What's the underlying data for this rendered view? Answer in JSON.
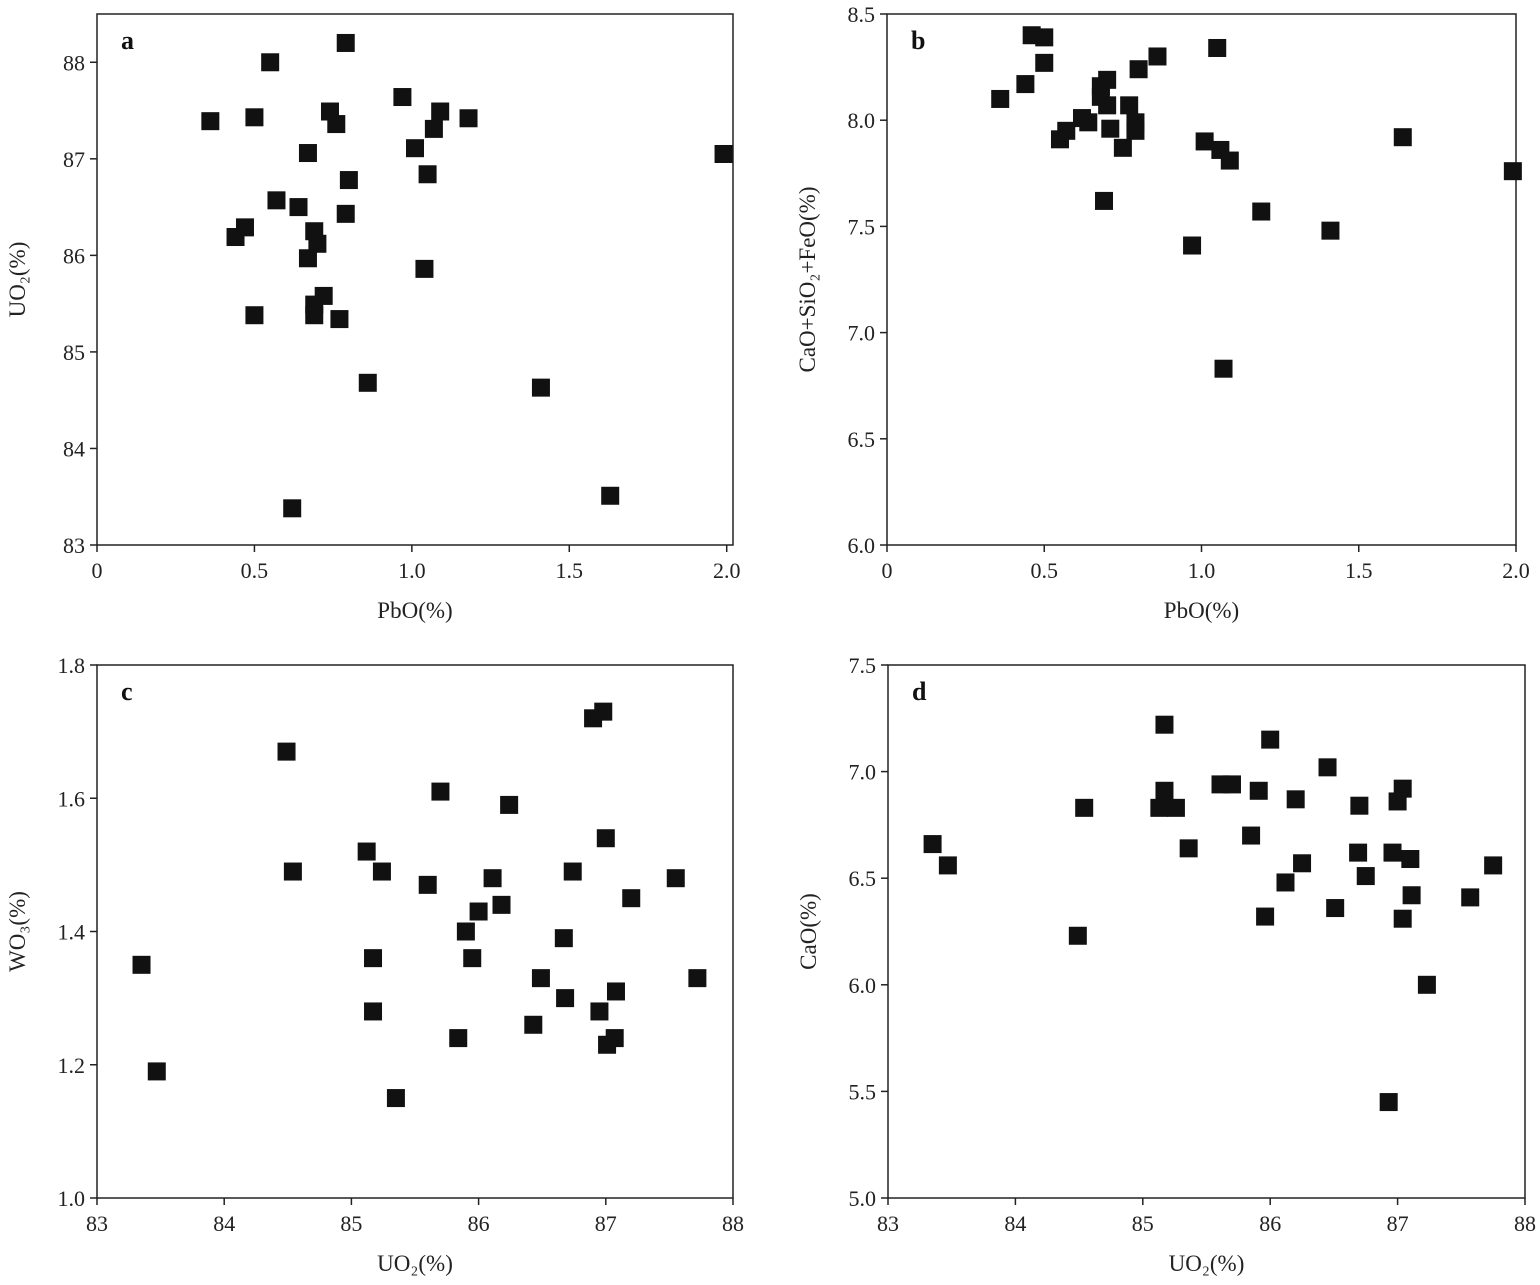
{
  "chart_data": [
    {
      "panel": "a",
      "type": "scatter",
      "xlabel": "PbO(%)",
      "ylabel": "UO₂(%)",
      "xlim": [
        0,
        2.02
      ],
      "ylim": [
        83,
        88.5
      ],
      "xticks": [
        0,
        0.5,
        1.0,
        1.5,
        2.0
      ],
      "xtick_labels": [
        "0",
        "0.5",
        "1.0",
        "1.5",
        "2.0"
      ],
      "yticks": [
        83,
        84,
        85,
        86,
        87,
        88
      ],
      "ytick_labels": [
        "83",
        "84",
        "85",
        "86",
        "87",
        "88"
      ],
      "points": [
        [
          0.36,
          87.39
        ],
        [
          0.55,
          88.0
        ],
        [
          0.5,
          87.43
        ],
        [
          0.79,
          88.2
        ],
        [
          0.74,
          87.49
        ],
        [
          0.76,
          87.36
        ],
        [
          0.67,
          87.06
        ],
        [
          0.97,
          87.64
        ],
        [
          1.09,
          87.49
        ],
        [
          1.18,
          87.42
        ],
        [
          1.07,
          87.31
        ],
        [
          1.01,
          87.11
        ],
        [
          1.05,
          86.84
        ],
        [
          0.8,
          86.78
        ],
        [
          1.99,
          87.05
        ],
        [
          0.57,
          86.57
        ],
        [
          0.64,
          86.5
        ],
        [
          0.79,
          86.43
        ],
        [
          0.44,
          86.19
        ],
        [
          0.47,
          86.29
        ],
        [
          0.69,
          86.25
        ],
        [
          0.7,
          86.12
        ],
        [
          0.67,
          85.97
        ],
        [
          1.04,
          85.86
        ],
        [
          0.72,
          85.58
        ],
        [
          0.69,
          85.49
        ],
        [
          0.69,
          85.38
        ],
        [
          0.5,
          85.38
        ],
        [
          0.77,
          85.34
        ],
        [
          0.86,
          84.68
        ],
        [
          1.41,
          84.63
        ],
        [
          1.63,
          83.51
        ],
        [
          0.62,
          83.38
        ]
      ]
    },
    {
      "panel": "b",
      "type": "scatter",
      "xlabel": "PbO(%)",
      "ylabel": "CaO+SiO₂+FeO(%)",
      "xlim": [
        0,
        2.0
      ],
      "ylim": [
        6.0,
        8.5
      ],
      "xticks": [
        0,
        0.5,
        1.0,
        1.5,
        2.0
      ],
      "xtick_labels": [
        "0",
        "0.5",
        "1.0",
        "1.5",
        "2.0"
      ],
      "yticks": [
        6.0,
        6.5,
        7.0,
        7.5,
        8.0,
        8.5
      ],
      "ytick_labels": [
        "6.0",
        "6.5",
        "7.0",
        "7.5",
        "8.0",
        "8.5"
      ],
      "points": [
        [
          0.46,
          8.4
        ],
        [
          0.5,
          8.39
        ],
        [
          0.5,
          8.27
        ],
        [
          0.44,
          8.17
        ],
        [
          0.36,
          8.1
        ],
        [
          0.7,
          8.19
        ],
        [
          0.68,
          8.16
        ],
        [
          0.68,
          8.11
        ],
        [
          0.7,
          8.07
        ],
        [
          0.8,
          8.24
        ],
        [
          0.86,
          8.3
        ],
        [
          1.05,
          8.34
        ],
        [
          0.77,
          8.07
        ],
        [
          0.79,
          7.99
        ],
        [
          0.79,
          7.95
        ],
        [
          0.71,
          7.96
        ],
        [
          0.75,
          7.87
        ],
        [
          0.64,
          7.99
        ],
        [
          0.62,
          8.01
        ],
        [
          0.57,
          7.95
        ],
        [
          0.55,
          7.91
        ],
        [
          1.01,
          7.9
        ],
        [
          1.06,
          7.86
        ],
        [
          1.09,
          7.81
        ],
        [
          1.64,
          7.92
        ],
        [
          1.99,
          7.76
        ],
        [
          0.69,
          7.62
        ],
        [
          1.19,
          7.57
        ],
        [
          1.41,
          7.48
        ],
        [
          0.97,
          7.41
        ],
        [
          1.07,
          6.83
        ]
      ]
    },
    {
      "panel": "c",
      "type": "scatter",
      "xlabel": "UO₂(%)",
      "ylabel": "WO₃(%)",
      "xlim": [
        83,
        88
      ],
      "ylim": [
        1.0,
        1.8
      ],
      "xticks": [
        83,
        84,
        85,
        86,
        87,
        88
      ],
      "xtick_labels": [
        "83",
        "84",
        "85",
        "86",
        "87",
        "88"
      ],
      "yticks": [
        1.0,
        1.2,
        1.4,
        1.6,
        1.8
      ],
      "ytick_labels": [
        "1.0",
        "1.2",
        "1.4",
        "1.6",
        "1.8"
      ],
      "points": [
        [
          83.35,
          1.35
        ],
        [
          83.47,
          1.19
        ],
        [
          84.49,
          1.67
        ],
        [
          84.54,
          1.49
        ],
        [
          85.12,
          1.52
        ],
        [
          85.24,
          1.49
        ],
        [
          85.17,
          1.36
        ],
        [
          85.17,
          1.28
        ],
        [
          85.35,
          1.15
        ],
        [
          85.7,
          1.61
        ],
        [
          85.6,
          1.47
        ],
        [
          85.9,
          1.4
        ],
        [
          86.0,
          1.43
        ],
        [
          85.95,
          1.36
        ],
        [
          85.84,
          1.24
        ],
        [
          86.11,
          1.48
        ],
        [
          86.18,
          1.44
        ],
        [
          86.24,
          1.59
        ],
        [
          86.43,
          1.26
        ],
        [
          86.49,
          1.33
        ],
        [
          86.67,
          1.39
        ],
        [
          86.74,
          1.49
        ],
        [
          86.68,
          1.3
        ],
        [
          86.9,
          1.72
        ],
        [
          86.98,
          1.73
        ],
        [
          87.0,
          1.54
        ],
        [
          86.95,
          1.28
        ],
        [
          87.08,
          1.31
        ],
        [
          87.07,
          1.24
        ],
        [
          87.01,
          1.23
        ],
        [
          87.2,
          1.45
        ],
        [
          87.55,
          1.48
        ],
        [
          87.72,
          1.33
        ]
      ]
    },
    {
      "panel": "d",
      "type": "scatter",
      "xlabel": "UO₂(%)",
      "ylabel": "CaO(%)",
      "xlim": [
        83,
        88
      ],
      "ylim": [
        5.0,
        7.5
      ],
      "xticks": [
        83,
        84,
        85,
        86,
        87,
        88
      ],
      "xtick_labels": [
        "83",
        "84",
        "85",
        "86",
        "87",
        "88"
      ],
      "yticks": [
        5.0,
        5.5,
        6.0,
        6.5,
        7.0,
        7.5
      ],
      "ytick_labels": [
        "5.0",
        "5.5",
        "6.0",
        "6.5",
        "7.0",
        "7.5"
      ],
      "points": [
        [
          83.35,
          6.66
        ],
        [
          83.47,
          6.56
        ],
        [
          84.49,
          6.23
        ],
        [
          84.54,
          6.83
        ],
        [
          85.17,
          7.22
        ],
        [
          85.17,
          6.91
        ],
        [
          85.13,
          6.83
        ],
        [
          85.26,
          6.83
        ],
        [
          85.36,
          6.64
        ],
        [
          85.61,
          6.94
        ],
        [
          85.7,
          6.94
        ],
        [
          85.91,
          6.91
        ],
        [
          85.85,
          6.7
        ],
        [
          86.0,
          7.15
        ],
        [
          85.96,
          6.32
        ],
        [
          86.12,
          6.48
        ],
        [
          86.2,
          6.87
        ],
        [
          86.25,
          6.57
        ],
        [
          86.45,
          7.02
        ],
        [
          86.51,
          6.36
        ],
        [
          86.69,
          6.62
        ],
        [
          86.7,
          6.84
        ],
        [
          86.75,
          6.51
        ],
        [
          86.96,
          6.62
        ],
        [
          87.04,
          6.92
        ],
        [
          87.0,
          6.86
        ],
        [
          87.1,
          6.59
        ],
        [
          87.11,
          6.42
        ],
        [
          87.04,
          6.31
        ],
        [
          87.23,
          6.0
        ],
        [
          86.93,
          5.45
        ],
        [
          87.57,
          6.41
        ],
        [
          87.75,
          6.56
        ]
      ]
    }
  ],
  "colors": {
    "marker": "#111111",
    "axis": "#222222"
  }
}
